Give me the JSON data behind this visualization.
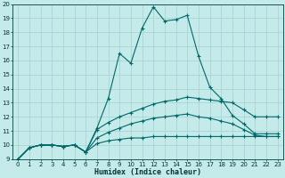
{
  "xlabel": "Humidex (Indice chaleur)",
  "xlim": [
    0,
    23
  ],
  "ylim": [
    9,
    20
  ],
  "xticks": [
    0,
    1,
    2,
    3,
    4,
    5,
    6,
    7,
    8,
    9,
    10,
    11,
    12,
    13,
    14,
    15,
    16,
    17,
    18,
    19,
    20,
    21,
    22,
    23
  ],
  "yticks": [
    9,
    10,
    11,
    12,
    13,
    14,
    15,
    16,
    17,
    18,
    19,
    20
  ],
  "bg_color": "#c5eaea",
  "line_color": "#006868",
  "grid_color": "#aad4d4",
  "lines": [
    [
      9.0,
      9.8,
      10.0,
      10.0,
      9.9,
      10.0,
      9.5,
      11.2,
      13.3,
      16.5,
      15.8,
      18.3,
      19.8,
      18.8,
      18.9,
      19.2,
      16.3,
      14.1,
      13.3,
      12.1,
      11.5,
      10.8,
      10.8,
      10.8
    ],
    [
      9.0,
      9.8,
      10.0,
      10.0,
      9.9,
      10.0,
      9.5,
      11.1,
      11.6,
      12.0,
      12.3,
      12.6,
      12.9,
      13.1,
      13.2,
      13.4,
      13.3,
      13.2,
      13.1,
      13.0,
      12.5,
      12.0,
      12.0,
      12.0
    ],
    [
      9.0,
      9.8,
      10.0,
      10.0,
      9.9,
      10.0,
      9.5,
      10.5,
      10.9,
      11.2,
      11.5,
      11.7,
      11.9,
      12.0,
      12.1,
      12.2,
      12.0,
      11.9,
      11.7,
      11.5,
      11.1,
      10.7,
      10.6,
      10.6
    ],
    [
      9.0,
      9.8,
      10.0,
      10.0,
      9.9,
      10.0,
      9.5,
      10.1,
      10.3,
      10.4,
      10.5,
      10.5,
      10.6,
      10.6,
      10.6,
      10.6,
      10.6,
      10.6,
      10.6,
      10.6,
      10.6,
      10.6,
      10.6,
      10.6
    ]
  ]
}
